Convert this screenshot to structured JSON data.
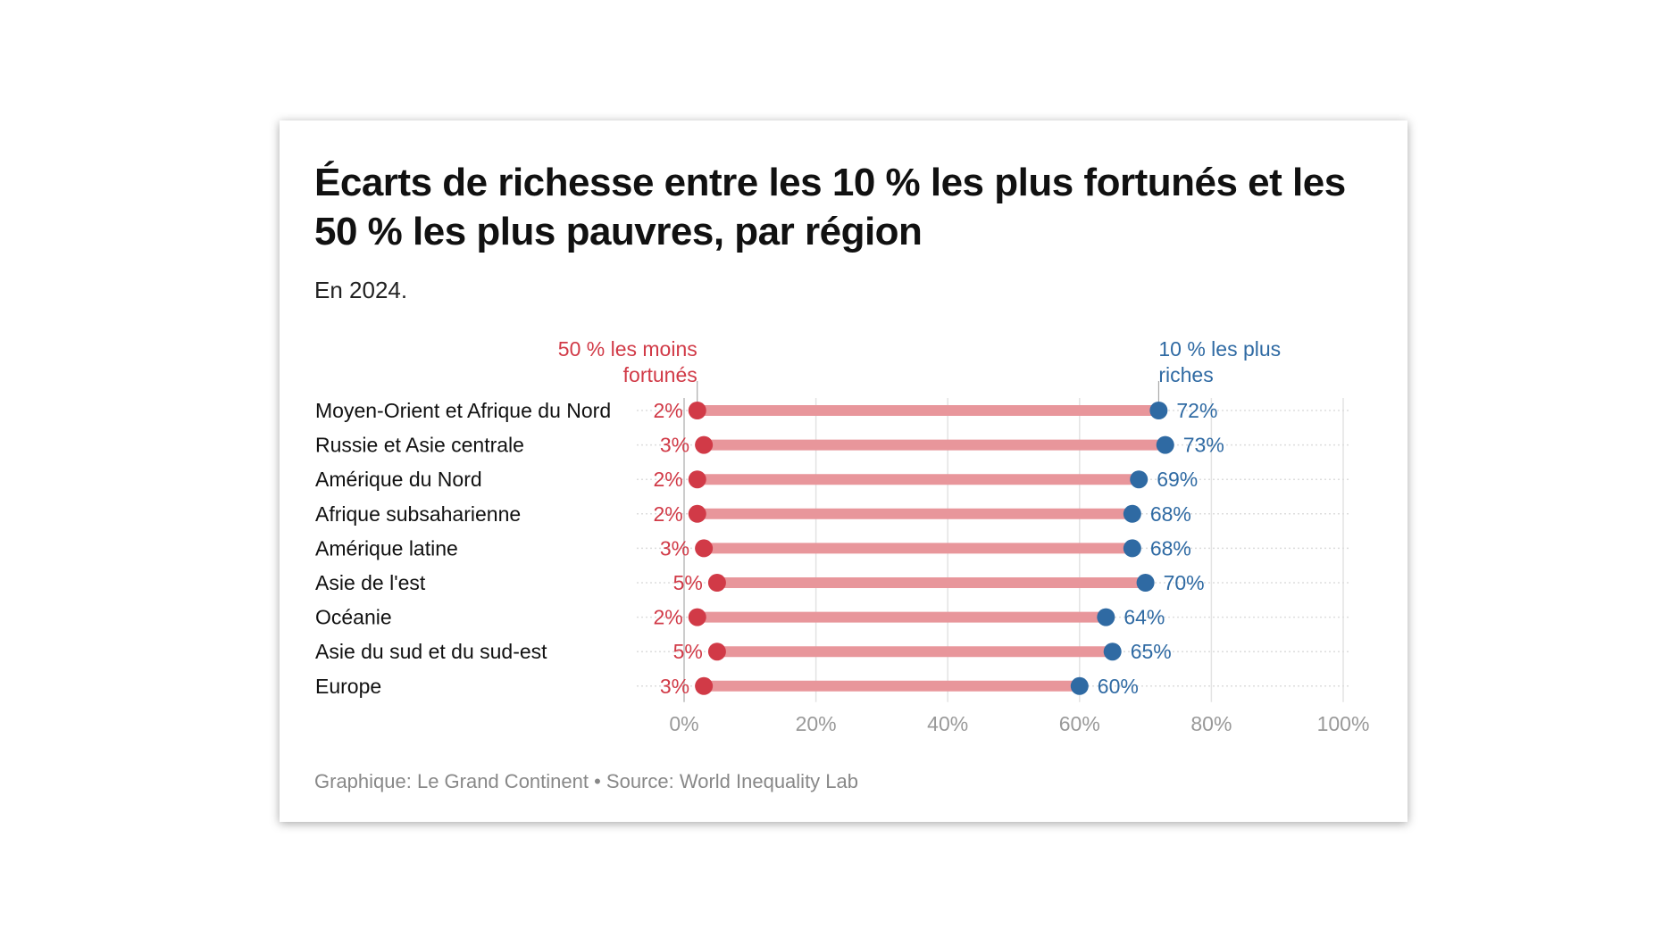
{
  "title": "Écarts de richesse entre les 10 % les plus fortunés et les 50 % les plus pauvres, par région",
  "subtitle": "En 2024.",
  "source": "Graphique: Le Grand Continent • Source: World Inequality Lab",
  "colors": {
    "bottom50": "#d13a47",
    "top10": "#2f6aa3",
    "bar": "#e8969b"
  },
  "chart_data": {
    "type": "dumbbell",
    "categories": [
      "Moyen-Orient et Afrique du Nord",
      "Russie et Asie centrale",
      "Amérique du Nord",
      "Afrique subsaharienne",
      "Amérique latine",
      "Asie de l'est",
      "Océanie",
      "Asie du sud et du sud-est",
      "Europe"
    ],
    "series": [
      {
        "name": "50 % les moins fortunés",
        "values": [
          2,
          3,
          2,
          2,
          3,
          5,
          2,
          5,
          3
        ]
      },
      {
        "name": "10 % les plus riches",
        "values": [
          72,
          73,
          69,
          68,
          68,
          70,
          64,
          65,
          60
        ]
      }
    ],
    "annotations": {
      "bottom50": [
        "50 % les moins",
        "fortunés"
      ],
      "top10": [
        "10 % les plus",
        "riches"
      ]
    },
    "xlim": [
      0,
      100
    ],
    "xticks": [
      "0%",
      "20%",
      "40%",
      "60%",
      "80%",
      "100%"
    ],
    "grid": true
  }
}
